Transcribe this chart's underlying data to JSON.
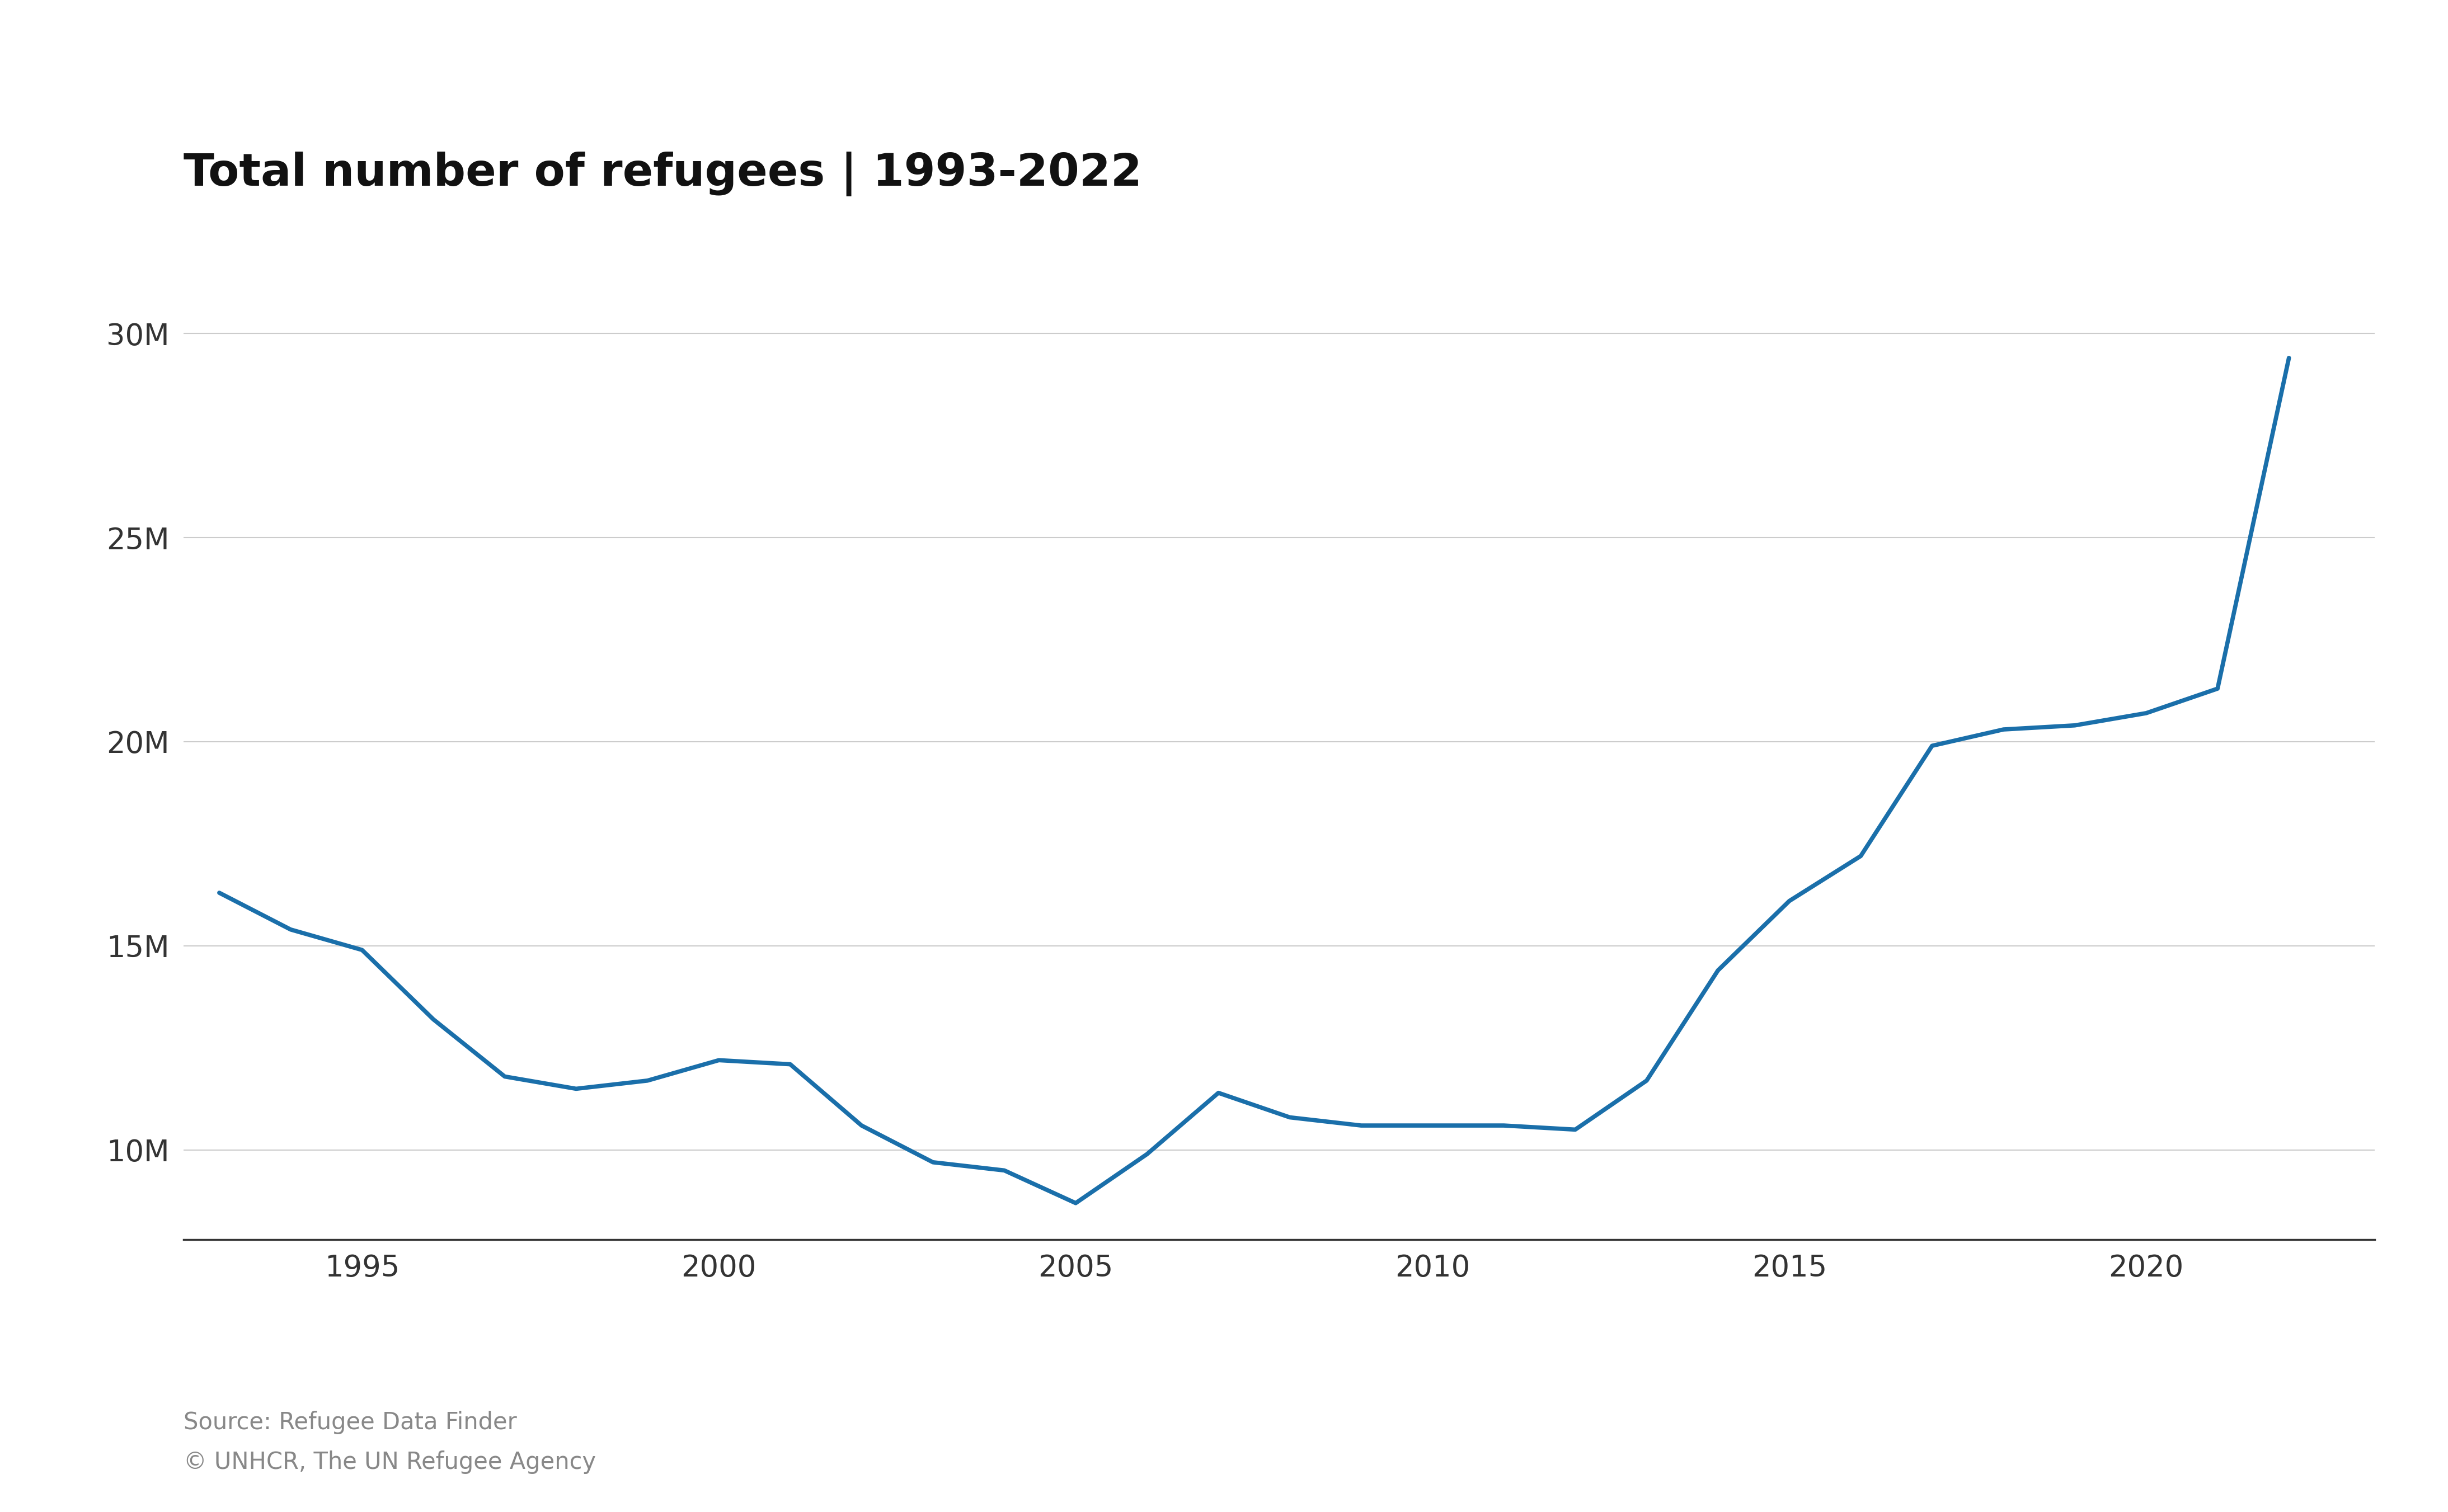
{
  "title": "Total number of refugees | 1993-2022",
  "years": [
    1993,
    1994,
    1995,
    1996,
    1997,
    1998,
    1999,
    2000,
    2001,
    2002,
    2003,
    2004,
    2005,
    2006,
    2007,
    2008,
    2009,
    2010,
    2011,
    2012,
    2013,
    2014,
    2015,
    2016,
    2017,
    2018,
    2019,
    2020,
    2021,
    2022
  ],
  "values": [
    16300000,
    15400000,
    14900000,
    13200000,
    11800000,
    11500000,
    11700000,
    12200000,
    12100000,
    10600000,
    9700000,
    9500000,
    8700000,
    9900000,
    11400000,
    10800000,
    10600000,
    10600000,
    10600000,
    10500000,
    11700000,
    14400000,
    16100000,
    17200000,
    19900000,
    20300000,
    20400000,
    20700000,
    21300000,
    29400000
  ],
  "line_color": "#1a6faa",
  "line_width": 5.5,
  "background_color": "#ffffff",
  "grid_color": "#cccccc",
  "title_fontsize": 58,
  "tick_fontsize": 38,
  "caption_fontsize": 30,
  "caption_color": "#888888",
  "caption_line1": "Source: Refugee Data Finder",
  "caption_line2": "© UNHCR, The UN Refugee Agency",
  "ytick_vals": [
    10000000,
    15000000,
    20000000,
    25000000,
    30000000
  ],
  "ytick_labels": [
    "10M",
    "15M",
    "20M",
    "25M",
    "30M"
  ],
  "xtick_vals": [
    1995,
    2000,
    2005,
    2010,
    2015,
    2020
  ],
  "ylim": [
    7800000,
    31500000
  ],
  "xlim": [
    1992.5,
    2023.2
  ]
}
